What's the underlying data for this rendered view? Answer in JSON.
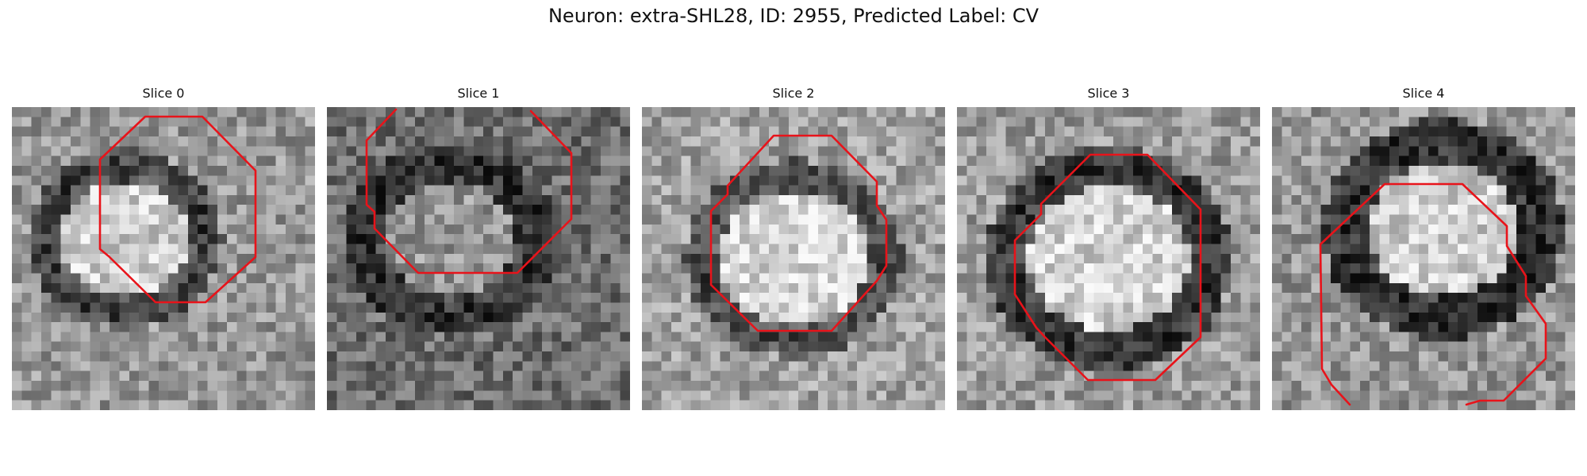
{
  "figure": {
    "title": "Neuron: extra-SHL28, ID: 2955, Predicted Label: CV"
  },
  "slices": [
    {
      "label": "Slice 0",
      "contour_color": "#e8131a"
    },
    {
      "label": "Slice 1",
      "contour_color": "#e8131a"
    },
    {
      "label": "Slice 2",
      "contour_color": "#e8131a"
    },
    {
      "label": "Slice 3",
      "contour_color": "#e8131a"
    },
    {
      "label": "Slice 4",
      "contour_color": "#e8131a"
    }
  ]
}
